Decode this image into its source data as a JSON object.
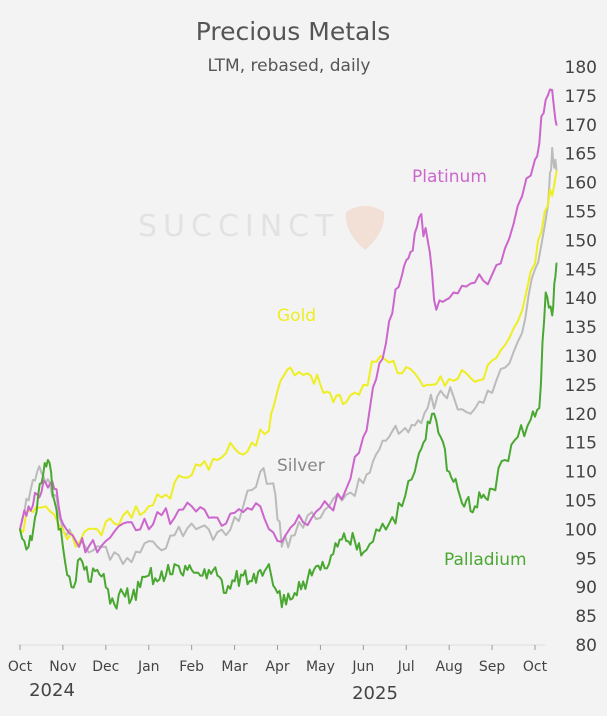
{
  "chart_data": {
    "type": "line",
    "title": "Precious Metals",
    "subtitle": "LTM, rebased, daily",
    "watermark": "SUCCINCT",
    "ylim": [
      80,
      180
    ],
    "yticks": [
      80,
      85,
      90,
      95,
      100,
      105,
      110,
      115,
      120,
      125,
      130,
      135,
      140,
      145,
      150,
      155,
      160,
      165,
      170,
      175,
      180
    ],
    "axis_position": "right",
    "xticks": [
      "Oct",
      "Nov",
      "Dec",
      "Jan",
      "Feb",
      "Mar",
      "Apr",
      "May",
      "Jun",
      "Jul",
      "Aug",
      "Sep",
      "Oct"
    ],
    "year_labels": [
      "2024",
      "2025"
    ],
    "x_unit": "months since Oct 2024",
    "grid": false,
    "series": [
      {
        "name": "Platinum",
        "color": "#cc66cc",
        "points": [
          [
            0,
            100
          ],
          [
            0.2,
            104
          ],
          [
            0.4,
            106
          ],
          [
            0.6,
            108
          ],
          [
            0.8,
            107
          ],
          [
            1,
            101
          ],
          [
            1.3,
            98
          ],
          [
            1.6,
            97
          ],
          [
            2.0,
            98
          ],
          [
            2.4,
            101
          ],
          [
            2.8,
            100
          ],
          [
            3.2,
            103
          ],
          [
            3.6,
            102
          ],
          [
            4.0,
            104
          ],
          [
            4.4,
            102
          ],
          [
            4.8,
            101
          ],
          [
            5.2,
            103
          ],
          [
            5.6,
            104
          ],
          [
            6.0,
            98
          ],
          [
            6.4,
            101
          ],
          [
            6.8,
            102
          ],
          [
            7.2,
            104
          ],
          [
            7.6,
            107
          ],
          [
            8.0,
            116
          ],
          [
            8.3,
            126
          ],
          [
            8.6,
            136
          ],
          [
            8.9,
            144
          ],
          [
            9.1,
            148
          ],
          [
            9.3,
            154
          ],
          [
            9.5,
            150
          ],
          [
            9.7,
            138
          ],
          [
            10.0,
            140
          ],
          [
            10.4,
            142
          ],
          [
            10.8,
            143
          ],
          [
            11.2,
            146
          ],
          [
            11.6,
            156
          ],
          [
            12.0,
            164
          ],
          [
            12.2,
            172
          ],
          [
            12.4,
            176
          ],
          [
            12.5,
            170
          ]
        ]
      },
      {
        "name": "Gold",
        "color": "#eeee22",
        "points": [
          [
            0,
            100
          ],
          [
            0.3,
            103
          ],
          [
            0.6,
            104
          ],
          [
            1.0,
            100
          ],
          [
            1.4,
            98
          ],
          [
            1.8,
            100
          ],
          [
            2.2,
            101
          ],
          [
            2.6,
            102
          ],
          [
            3.0,
            104
          ],
          [
            3.4,
            106
          ],
          [
            3.8,
            109
          ],
          [
            4.2,
            111
          ],
          [
            4.6,
            112
          ],
          [
            5.0,
            114
          ],
          [
            5.4,
            115
          ],
          [
            5.8,
            117
          ],
          [
            6.0,
            124
          ],
          [
            6.3,
            128
          ],
          [
            6.7,
            127
          ],
          [
            7.0,
            125
          ],
          [
            7.3,
            122
          ],
          [
            7.6,
            122
          ],
          [
            8.0,
            125
          ],
          [
            8.4,
            130
          ],
          [
            8.8,
            127
          ],
          [
            9.2,
            127
          ],
          [
            9.6,
            125
          ],
          [
            10.0,
            126
          ],
          [
            10.4,
            127
          ],
          [
            10.8,
            126
          ],
          [
            11.2,
            131
          ],
          [
            11.6,
            136
          ],
          [
            12.0,
            146
          ],
          [
            12.3,
            156
          ],
          [
            12.5,
            162
          ]
        ]
      },
      {
        "name": "Silver",
        "color": "#bbbbbb",
        "points": [
          [
            0,
            100
          ],
          [
            0.2,
            105
          ],
          [
            0.4,
            110
          ],
          [
            0.6,
            108
          ],
          [
            0.8,
            106
          ],
          [
            1.0,
            100
          ],
          [
            1.3,
            97
          ],
          [
            1.6,
            96
          ],
          [
            2.0,
            97
          ],
          [
            2.4,
            94
          ],
          [
            2.8,
            96
          ],
          [
            3.2,
            97
          ],
          [
            3.6,
            99
          ],
          [
            4.0,
            101
          ],
          [
            4.4,
            100
          ],
          [
            4.8,
            99
          ],
          [
            5.2,
            104
          ],
          [
            5.6,
            110
          ],
          [
            5.9,
            108
          ],
          [
            6.1,
            97
          ],
          [
            6.4,
            99
          ],
          [
            6.8,
            103
          ],
          [
            7.2,
            104
          ],
          [
            7.6,
            106
          ],
          [
            8.0,
            108
          ],
          [
            8.3,
            113
          ],
          [
            8.6,
            116
          ],
          [
            8.9,
            117
          ],
          [
            9.2,
            118
          ],
          [
            9.5,
            121
          ],
          [
            9.8,
            124
          ],
          [
            10.1,
            123
          ],
          [
            10.5,
            120
          ],
          [
            10.9,
            124
          ],
          [
            11.3,
            128
          ],
          [
            11.7,
            134
          ],
          [
            12.0,
            145
          ],
          [
            12.3,
            156
          ],
          [
            12.4,
            166
          ],
          [
            12.5,
            162
          ]
        ]
      },
      {
        "name": "Palladium",
        "color": "#4aa832",
        "points": [
          [
            0,
            100
          ],
          [
            0.2,
            97
          ],
          [
            0.35,
            102
          ],
          [
            0.5,
            108
          ],
          [
            0.65,
            112
          ],
          [
            0.8,
            105
          ],
          [
            1.0,
            97
          ],
          [
            1.2,
            90
          ],
          [
            1.4,
            95
          ],
          [
            1.6,
            91
          ],
          [
            1.8,
            93
          ],
          [
            2.0,
            90
          ],
          [
            2.2,
            87
          ],
          [
            2.4,
            89
          ],
          [
            2.6,
            88
          ],
          [
            2.8,
            90
          ],
          [
            3.0,
            92
          ],
          [
            3.2,
            91
          ],
          [
            3.4,
            92
          ],
          [
            3.6,
            94
          ],
          [
            3.8,
            92
          ],
          [
            4.0,
            93
          ],
          [
            4.2,
            92
          ],
          [
            4.4,
            93
          ],
          [
            4.6,
            92
          ],
          [
            4.8,
            89
          ],
          [
            5.0,
            91
          ],
          [
            5.2,
            92
          ],
          [
            5.4,
            91
          ],
          [
            5.6,
            93
          ],
          [
            5.8,
            94
          ],
          [
            6.0,
            89
          ],
          [
            6.2,
            87
          ],
          [
            6.4,
            89
          ],
          [
            6.6,
            91
          ],
          [
            6.8,
            92
          ],
          [
            7.0,
            93
          ],
          [
            7.2,
            94
          ],
          [
            7.4,
            97
          ],
          [
            7.6,
            98
          ],
          [
            7.8,
            98
          ],
          [
            8.0,
            96
          ],
          [
            8.3,
            100
          ],
          [
            8.6,
            101
          ],
          [
            8.9,
            104
          ],
          [
            9.2,
            110
          ],
          [
            9.4,
            115
          ],
          [
            9.6,
            120
          ],
          [
            9.8,
            116
          ],
          [
            10.0,
            110
          ],
          [
            10.2,
            107
          ],
          [
            10.4,
            105
          ],
          [
            10.6,
            104
          ],
          [
            10.8,
            106
          ],
          [
            11.0,
            107
          ],
          [
            11.3,
            112
          ],
          [
            11.6,
            116
          ],
          [
            11.9,
            119
          ],
          [
            12.1,
            121
          ],
          [
            12.25,
            141
          ],
          [
            12.4,
            137
          ],
          [
            12.5,
            146
          ]
        ]
      }
    ]
  }
}
